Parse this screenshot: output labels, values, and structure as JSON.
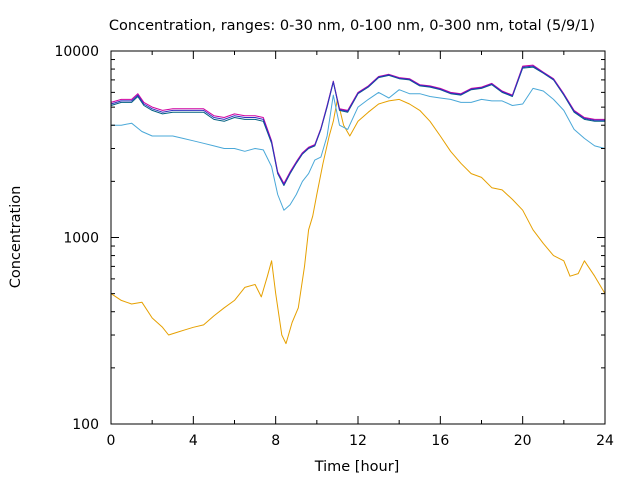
{
  "chart_data": {
    "type": "line",
    "title": "Concentration, ranges: 0-30 nm, 0-100 nm, 0-300 nm, total (5/9/1)",
    "xlabel": "Time [hour]",
    "ylabel": "Concentration",
    "xlim": [
      0,
      24
    ],
    "ylim": [
      100,
      10000
    ],
    "yscale": "log",
    "grid": false,
    "legend": "none",
    "x_ticks": [
      0,
      4,
      8,
      12,
      16,
      20,
      24
    ],
    "x_tick_labels": [
      "0",
      "4",
      "8",
      "12",
      "16",
      "20",
      "24"
    ],
    "y_ticks": [
      100,
      1000,
      10000
    ],
    "y_tick_labels": [
      "100",
      "1000",
      "10000"
    ],
    "series": [
      {
        "color": "#e6a000",
        "x": [
          0,
          0.5,
          1,
          1.5,
          2,
          2.5,
          2.8,
          3.2,
          3.6,
          4,
          4.5,
          5,
          5.5,
          6,
          6.5,
          7,
          7.3,
          7.6,
          7.8,
          8,
          8.3,
          8.5,
          8.8,
          9.1,
          9.4,
          9.6,
          9.8,
          10,
          10.3,
          10.6,
          10.8,
          11,
          11.3,
          11.6,
          12,
          12.5,
          13,
          13.5,
          14,
          14.5,
          15,
          15.5,
          16,
          16.5,
          17,
          17.5,
          18,
          18.5,
          19,
          19.5,
          20,
          20.5,
          21,
          21.5,
          22,
          22.3,
          22.7,
          23,
          23.5,
          24
        ],
        "values": [
          500,
          460,
          440,
          450,
          370,
          330,
          300,
          310,
          320,
          330,
          340,
          380,
          420,
          460,
          540,
          560,
          480,
          620,
          750,
          500,
          300,
          270,
          350,
          420,
          700,
          1100,
          1300,
          1700,
          2500,
          3500,
          4200,
          5500,
          4000,
          3500,
          4200,
          4700,
          5200,
          5400,
          5500,
          5200,
          4800,
          4200,
          3500,
          2900,
          2500,
          2200,
          2100,
          1850,
          1800,
          1600,
          1400,
          1100,
          930,
          800,
          750,
          620,
          640,
          750,
          620,
          500
        ]
      },
      {
        "color": "#4aa8d8",
        "x": [
          0,
          0.5,
          1,
          1.5,
          2,
          2.5,
          3,
          3.5,
          4,
          4.5,
          5,
          5.5,
          6,
          6.5,
          7,
          7.4,
          7.8,
          8.1,
          8.4,
          8.7,
          9,
          9.3,
          9.6,
          9.9,
          10.2,
          10.5,
          10.8,
          11.1,
          11.5,
          12,
          12.5,
          13,
          13.5,
          14,
          14.5,
          15,
          15.5,
          16,
          16.5,
          17,
          17.5,
          18,
          18.5,
          19,
          19.5,
          20,
          20.5,
          21,
          21.5,
          22,
          22.5,
          23,
          23.5,
          24
        ],
        "values": [
          4000,
          4000,
          4100,
          3700,
          3500,
          3500,
          3500,
          3400,
          3300,
          3200,
          3100,
          3000,
          3000,
          2900,
          3000,
          2950,
          2400,
          1700,
          1400,
          1500,
          1700,
          2000,
          2200,
          2600,
          2700,
          3500,
          5800,
          4000,
          3800,
          5000,
          5500,
          6000,
          5600,
          6200,
          5900,
          5900,
          5700,
          5600,
          5500,
          5300,
          5300,
          5500,
          5400,
          5400,
          5100,
          5200,
          6300,
          6100,
          5500,
          4800,
          3800,
          3400,
          3100,
          3000
        ]
      },
      {
        "color": "#006080",
        "x": [
          0,
          0.5,
          1,
          1.3,
          1.6,
          2,
          2.5,
          3,
          3.5,
          4,
          4.5,
          5,
          5.5,
          6,
          6.5,
          7,
          7.4,
          7.8,
          8.1,
          8.4,
          8.7,
          9,
          9.3,
          9.6,
          9.9,
          10.2,
          10.5,
          10.8,
          11.1,
          11.5,
          12,
          12.5,
          13,
          13.5,
          14,
          14.5,
          15,
          15.5,
          16,
          16.5,
          17,
          17.5,
          18,
          18.5,
          19,
          19.5,
          20,
          20.5,
          21,
          21.5,
          22,
          22.5,
          23,
          23.5,
          24
        ],
        "values": [
          5100,
          5300,
          5300,
          5700,
          5100,
          4800,
          4600,
          4700,
          4700,
          4700,
          4700,
          4300,
          4200,
          4400,
          4300,
          4300,
          4200,
          3200,
          2200,
          1900,
          2200,
          2500,
          2800,
          3000,
          3100,
          3800,
          5000,
          6800,
          4800,
          4700,
          5900,
          6400,
          7200,
          7400,
          7100,
          7000,
          6500,
          6400,
          6200,
          5900,
          5800,
          6200,
          6300,
          6600,
          6000,
          5700,
          8100,
          8200,
          7600,
          7000,
          5800,
          4700,
          4300,
          4200,
          4200
        ]
      },
      {
        "color": "#d000a0",
        "x": [
          0,
          0.5,
          1,
          1.3,
          1.6,
          2,
          2.5,
          3,
          3.5,
          4,
          4.5,
          5,
          5.5,
          6,
          6.5,
          7,
          7.4,
          7.8,
          8.1,
          8.4,
          8.7,
          9,
          9.3,
          9.6,
          9.9,
          10.2,
          10.5,
          10.8,
          11.1,
          11.5,
          12,
          12.5,
          13,
          13.5,
          14,
          14.5,
          15,
          15.5,
          16,
          16.5,
          17,
          17.5,
          18,
          18.5,
          19,
          19.5,
          20,
          20.5,
          21,
          21.5,
          22,
          22.5,
          23,
          23.5,
          24
        ],
        "values": [
          5300,
          5500,
          5500,
          5900,
          5300,
          5000,
          4800,
          4900,
          4900,
          4900,
          4900,
          4500,
          4400,
          4600,
          4500,
          4500,
          4400,
          3300,
          2250,
          1950,
          2250,
          2550,
          2850,
          3050,
          3150,
          3850,
          5100,
          6900,
          4900,
          4800,
          6000,
          6500,
          7300,
          7500,
          7200,
          7100,
          6600,
          6500,
          6300,
          6000,
          5900,
          6300,
          6400,
          6700,
          6100,
          5800,
          8300,
          8400,
          7700,
          7100,
          5900,
          4800,
          4400,
          4300,
          4300
        ]
      },
      {
        "color": "#3030c0",
        "x": [
          0,
          0.5,
          1,
          1.3,
          1.6,
          2,
          2.5,
          3,
          3.5,
          4,
          4.5,
          5,
          5.5,
          6,
          6.5,
          7,
          7.4,
          7.8,
          8.1,
          8.4,
          8.7,
          9,
          9.3,
          9.6,
          9.9,
          10.2,
          10.5,
          10.8,
          11.1,
          11.5,
          12,
          12.5,
          13,
          13.5,
          14,
          14.5,
          15,
          15.5,
          16,
          16.5,
          17,
          17.5,
          18,
          18.5,
          19,
          19.5,
          20,
          20.5,
          21,
          21.5,
          22,
          22.5,
          23,
          23.5,
          24
        ],
        "values": [
          5200,
          5400,
          5400,
          5800,
          5200,
          4900,
          4700,
          4800,
          4800,
          4800,
          4800,
          4400,
          4300,
          4500,
          4400,
          4400,
          4300,
          3250,
          2220,
          1920,
          2220,
          2520,
          2820,
          3020,
          3120,
          3820,
          5050,
          6850,
          4850,
          4750,
          5950,
          6450,
          7250,
          7450,
          7150,
          7050,
          6550,
          6450,
          6250,
          5950,
          5850,
          6250,
          6350,
          6650,
          6050,
          5750,
          8200,
          8300,
          7650,
          7050,
          5850,
          4750,
          4350,
          4250,
          4250
        ]
      }
    ]
  }
}
